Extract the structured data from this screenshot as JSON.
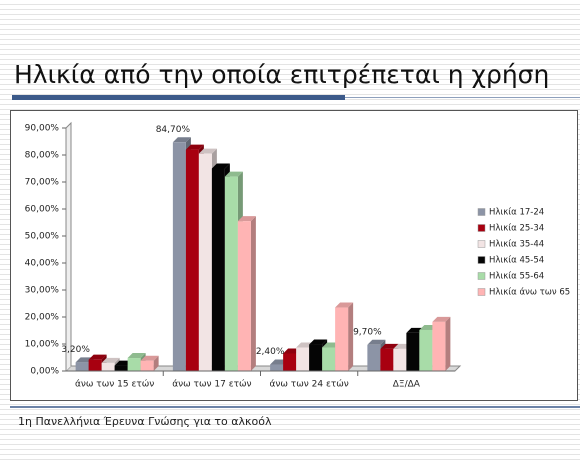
{
  "title": "Ηλικία από την οποία επιτρέπεται η χρήση",
  "footer": "1η Πανελλήνια Έρευνα Γνώσης για το αλκοόλ",
  "chart_data": {
    "type": "bar",
    "categories": [
      "άνω των 15 ετών",
      "άνω των 17 ετών",
      "άνω των 24 ετών",
      "ΔΞ/ΔΑ"
    ],
    "series": [
      {
        "name": "Ηλικία 17-24",
        "color": "#8c94a6",
        "values": [
          3.2,
          84.7,
          2.4,
          9.7
        ],
        "value_labels": [
          "3,20%",
          "84,70%",
          "2,40%",
          "9,70%"
        ]
      },
      {
        "name": "Ηλικία 25-34",
        "color": "#a80010",
        "values": [
          4.2,
          82,
          6.5,
          8.2
        ]
      },
      {
        "name": "Ηλικία 35-44",
        "color": "#f2e4e4",
        "values": [
          3,
          80.5,
          8.7,
          8.2
        ]
      },
      {
        "name": "Ηλικία 45-54",
        "color": "#050505",
        "values": [
          2,
          75,
          9.8,
          14.1
        ]
      },
      {
        "name": "Ηλικία 55-64",
        "color": "#a8dca8",
        "values": [
          4.8,
          72,
          8.7,
          15.2
        ]
      },
      {
        "name": "Ηλικία άνω των 65",
        "color": "#ffb4b4",
        "values": [
          3.8,
          55.5,
          23.5,
          18.2
        ]
      }
    ],
    "ylim": [
      0,
      90
    ],
    "yticks": [
      {
        "value": 0,
        "label": "0,00%"
      },
      {
        "value": 10,
        "label": "10,00%"
      },
      {
        "value": 20,
        "label": "20,00%"
      },
      {
        "value": 30,
        "label": "30,00%"
      },
      {
        "value": 40,
        "label": "40,00%"
      },
      {
        "value": 50,
        "label": "50,00%"
      },
      {
        "value": 60,
        "label": "60,00%"
      },
      {
        "value": 70,
        "label": "70,00%"
      },
      {
        "value": 80,
        "label": "80,00%"
      },
      {
        "value": 90,
        "label": "90,00%"
      }
    ],
    "grid": false
  }
}
